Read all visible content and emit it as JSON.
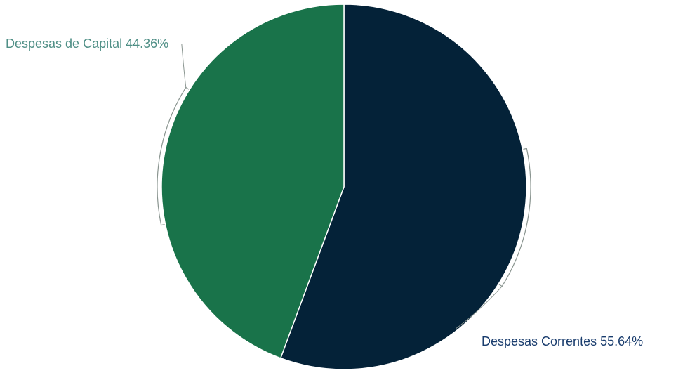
{
  "chart_data": {
    "type": "pie",
    "title": "",
    "start_angle_deg": 0,
    "direction": "clockwise",
    "slices": [
      {
        "label": "Despesas Correntes",
        "value": 55.64,
        "value_text": "55.64%",
        "color": "#042238",
        "label_color": "#1a3d6e",
        "label_position": "bottom-right"
      },
      {
        "label": "Despesas de Capital",
        "value": 44.36,
        "value_text": "44.36%",
        "color": "#19734a",
        "label_color": "#4f8f86",
        "label_position": "top-left"
      }
    ],
    "slice_border_color": "#ffffff",
    "leader_line_color": "#8a9590"
  }
}
